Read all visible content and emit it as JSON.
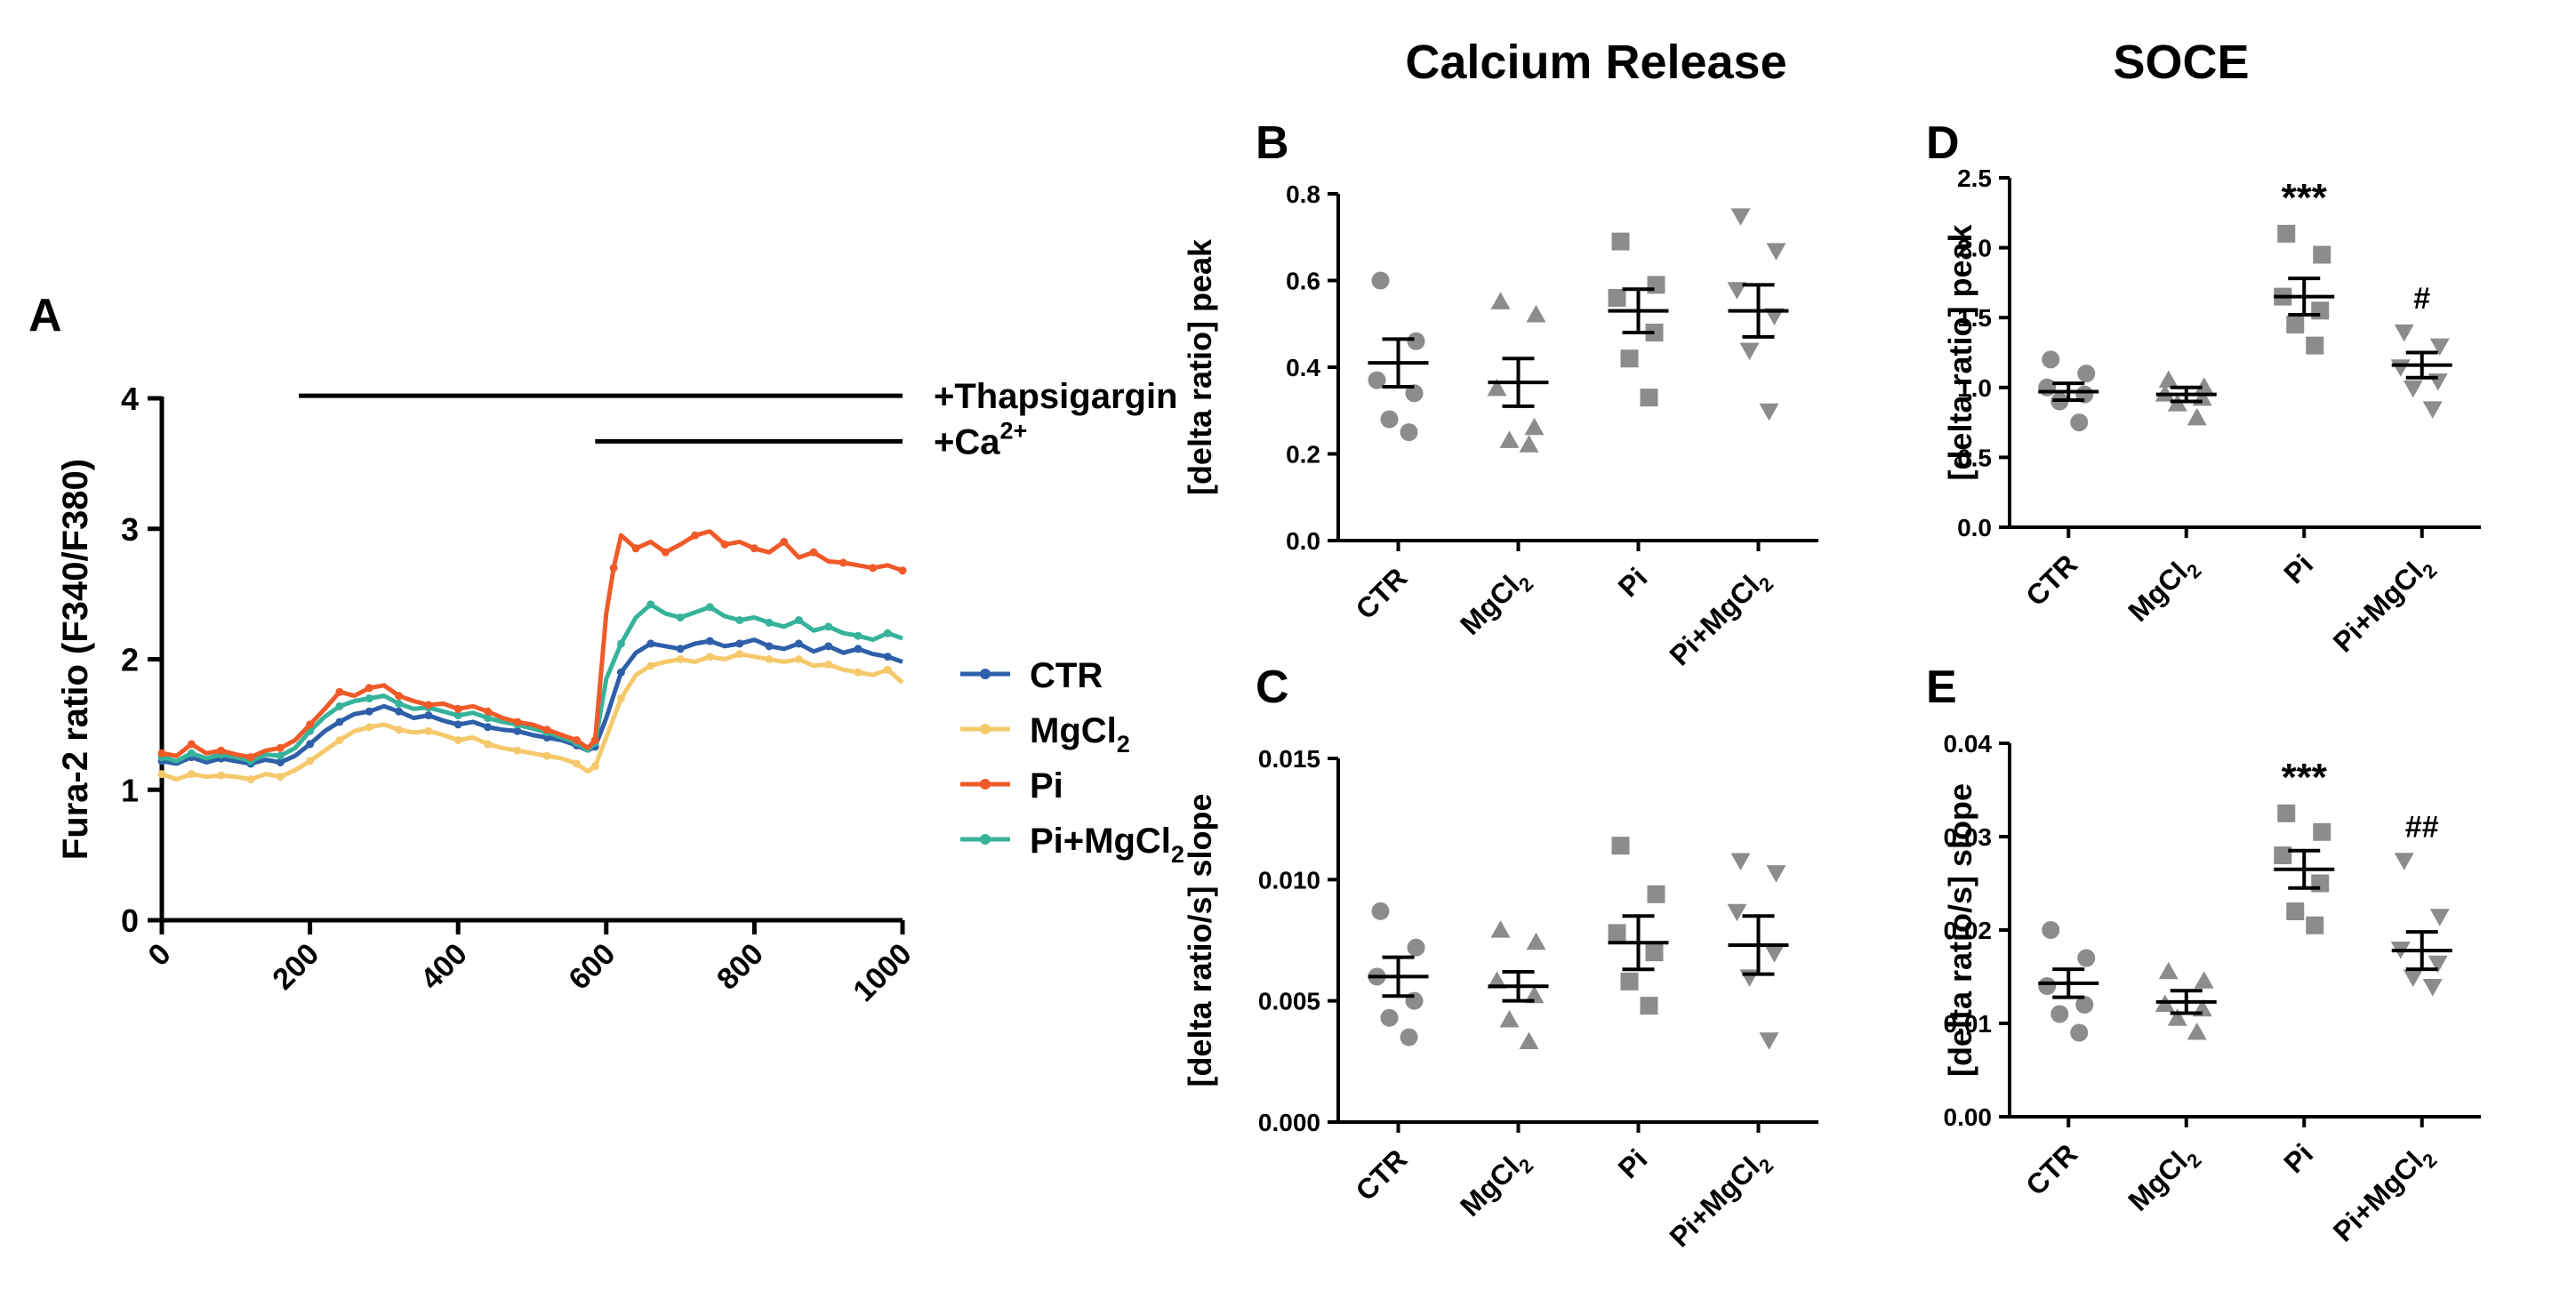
{
  "colors": {
    "CTR": "#2e5fa8",
    "MgCl2": "#f5c96b",
    "Pi": "#ef5a28",
    "Pi+MgCl2": "#36b39a",
    "points": "#8c8c8c",
    "axes": "#000000"
  },
  "section_titles": {
    "calcium_release": "Calcium Release",
    "soce": "SOCE"
  },
  "chart_data": [
    {
      "id": "A",
      "panel_label": "A",
      "type": "line",
      "ylabel": "Fura-2 ratio (F340/F380)",
      "xlabel": "",
      "xlim": [
        0,
        1000
      ],
      "ylim": [
        0,
        4
      ],
      "xticks": [
        "0",
        "200",
        "400",
        "600",
        "800",
        "1000"
      ],
      "yticks": [
        "0",
        "1",
        "2",
        "3",
        "4"
      ],
      "legend": "right",
      "annotations": [
        {
          "text": "+Thapsigargin",
          "x_start": 185,
          "x_end": 1000,
          "y": 4.02
        },
        {
          "text": "+Ca",
          "sup": "2+",
          "x_start": 585,
          "x_end": 1000,
          "y": 3.67
        }
      ],
      "series": [
        {
          "name": "CTR",
          "key": "CTR",
          "x": [
            0,
            20,
            40,
            60,
            80,
            100,
            120,
            140,
            160,
            180,
            200,
            220,
            240,
            260,
            280,
            300,
            320,
            340,
            360,
            380,
            400,
            420,
            440,
            460,
            480,
            500,
            520,
            540,
            560,
            575,
            585,
            600,
            620,
            640,
            660,
            680,
            700,
            720,
            740,
            760,
            780,
            800,
            820,
            840,
            860,
            880,
            900,
            920,
            940,
            960,
            980,
            1000
          ],
          "y": [
            1.22,
            1.2,
            1.25,
            1.21,
            1.24,
            1.22,
            1.2,
            1.23,
            1.21,
            1.26,
            1.35,
            1.45,
            1.52,
            1.58,
            1.6,
            1.64,
            1.6,
            1.55,
            1.57,
            1.53,
            1.5,
            1.52,
            1.48,
            1.46,
            1.45,
            1.42,
            1.4,
            1.38,
            1.34,
            1.3,
            1.33,
            1.55,
            1.9,
            2.05,
            2.12,
            2.1,
            2.08,
            2.12,
            2.14,
            2.1,
            2.12,
            2.15,
            2.1,
            2.08,
            2.12,
            2.06,
            2.1,
            2.05,
            2.08,
            2.04,
            2.02,
            1.98
          ]
        },
        {
          "name": "MgCl",
          "sub": "2",
          "key": "MgCl2",
          "x": [
            0,
            20,
            40,
            60,
            80,
            100,
            120,
            140,
            160,
            180,
            200,
            220,
            240,
            260,
            280,
            300,
            320,
            340,
            360,
            380,
            400,
            420,
            440,
            460,
            480,
            500,
            520,
            540,
            560,
            575,
            585,
            600,
            620,
            640,
            660,
            680,
            700,
            720,
            740,
            760,
            780,
            800,
            820,
            840,
            860,
            880,
            900,
            920,
            940,
            960,
            980,
            1000
          ],
          "y": [
            1.12,
            1.08,
            1.12,
            1.1,
            1.11,
            1.1,
            1.08,
            1.12,
            1.1,
            1.15,
            1.22,
            1.3,
            1.38,
            1.45,
            1.48,
            1.5,
            1.46,
            1.44,
            1.45,
            1.42,
            1.38,
            1.4,
            1.35,
            1.32,
            1.3,
            1.28,
            1.26,
            1.24,
            1.2,
            1.14,
            1.18,
            1.4,
            1.7,
            1.88,
            1.95,
            1.98,
            2.0,
            1.98,
            2.02,
            2.0,
            2.04,
            2.02,
            2.0,
            1.98,
            2.0,
            1.95,
            1.96,
            1.92,
            1.9,
            1.88,
            1.92,
            1.82
          ]
        },
        {
          "name": "Pi",
          "key": "Pi",
          "x": [
            0,
            20,
            40,
            60,
            80,
            100,
            120,
            140,
            160,
            180,
            200,
            220,
            240,
            260,
            280,
            300,
            320,
            340,
            360,
            380,
            400,
            420,
            440,
            460,
            480,
            500,
            520,
            540,
            560,
            575,
            585,
            600,
            610,
            620,
            640,
            660,
            680,
            700,
            720,
            740,
            760,
            780,
            800,
            820,
            840,
            860,
            880,
            900,
            920,
            940,
            960,
            980,
            1000
          ],
          "y": [
            1.28,
            1.26,
            1.35,
            1.28,
            1.3,
            1.27,
            1.25,
            1.3,
            1.32,
            1.38,
            1.5,
            1.62,
            1.75,
            1.72,
            1.78,
            1.8,
            1.72,
            1.68,
            1.65,
            1.66,
            1.62,
            1.64,
            1.6,
            1.55,
            1.52,
            1.5,
            1.46,
            1.42,
            1.38,
            1.32,
            1.38,
            2.35,
            2.7,
            2.95,
            2.85,
            2.9,
            2.82,
            2.88,
            2.95,
            2.98,
            2.88,
            2.9,
            2.85,
            2.82,
            2.9,
            2.78,
            2.82,
            2.75,
            2.74,
            2.72,
            2.7,
            2.72,
            2.68
          ]
        },
        {
          "name": "Pi+MgCl",
          "sub": "2",
          "key": "Pi+MgCl2",
          "x": [
            0,
            20,
            40,
            60,
            80,
            100,
            120,
            140,
            160,
            180,
            200,
            220,
            240,
            260,
            280,
            300,
            320,
            340,
            360,
            380,
            400,
            420,
            440,
            460,
            480,
            500,
            520,
            540,
            560,
            575,
            585,
            600,
            620,
            640,
            660,
            680,
            700,
            720,
            740,
            760,
            780,
            800,
            820,
            840,
            860,
            880,
            900,
            920,
            940,
            960,
            980,
            1000
          ],
          "y": [
            1.25,
            1.22,
            1.28,
            1.24,
            1.27,
            1.25,
            1.22,
            1.27,
            1.26,
            1.32,
            1.45,
            1.56,
            1.64,
            1.68,
            1.7,
            1.72,
            1.66,
            1.62,
            1.63,
            1.6,
            1.57,
            1.59,
            1.55,
            1.52,
            1.5,
            1.47,
            1.44,
            1.4,
            1.36,
            1.3,
            1.36,
            1.85,
            2.12,
            2.32,
            2.42,
            2.35,
            2.32,
            2.36,
            2.4,
            2.33,
            2.3,
            2.32,
            2.28,
            2.25,
            2.3,
            2.22,
            2.25,
            2.2,
            2.18,
            2.15,
            2.2,
            2.16
          ]
        }
      ]
    },
    {
      "id": "B",
      "panel_label": "B",
      "type": "scatter",
      "ylabel": "[delta ratio] peak",
      "ylim": [
        0,
        0.8
      ],
      "yticks": [
        "0.0",
        "0.2",
        "0.4",
        "0.6",
        "0.8"
      ],
      "categories": [
        "CTR",
        "MgCl",
        "Pi",
        "Pi+MgCl"
      ],
      "category_subs": [
        "",
        "2",
        "",
        "2"
      ],
      "markers": [
        "circle",
        "triangle-up",
        "square",
        "triangle-down"
      ],
      "points": [
        [
          0.6,
          0.46,
          0.37,
          0.34,
          0.28,
          0.25
        ],
        [
          0.55,
          0.52,
          0.35,
          0.26,
          0.23,
          0.22
        ],
        [
          0.69,
          0.59,
          0.56,
          0.48,
          0.42,
          0.33
        ],
        [
          0.75,
          0.67,
          0.58,
          0.52,
          0.44,
          0.3
        ]
      ],
      "means": [
        0.41,
        0.365,
        0.53,
        0.53
      ],
      "sems": [
        0.055,
        0.055,
        0.05,
        0.06
      ],
      "annotations": [
        "",
        "",
        "",
        ""
      ]
    },
    {
      "id": "C",
      "panel_label": "C",
      "type": "scatter",
      "ylabel": "[delta ratio/s] slope",
      "ylim": [
        0,
        0.015
      ],
      "yticks": [
        "0.000",
        "0.005",
        "0.010",
        "0.015"
      ],
      "categories": [
        "CTR",
        "MgCl",
        "Pi",
        "Pi+MgCl"
      ],
      "category_subs": [
        "",
        "2",
        "",
        "2"
      ],
      "markers": [
        "circle",
        "triangle-up",
        "square",
        "triangle-down"
      ],
      "points": [
        [
          0.0087,
          0.0072,
          0.006,
          0.005,
          0.0043,
          0.0035
        ],
        [
          0.0079,
          0.0074,
          0.0058,
          0.0052,
          0.0042,
          0.0033
        ],
        [
          0.0114,
          0.0094,
          0.0078,
          0.007,
          0.0058,
          0.0048
        ],
        [
          0.0108,
          0.0103,
          0.0087,
          0.007,
          0.006,
          0.0034
        ]
      ],
      "means": [
        0.006,
        0.0056,
        0.0074,
        0.0073
      ],
      "sems": [
        0.0008,
        0.0006,
        0.0011,
        0.0012
      ],
      "annotations": [
        "",
        "",
        "",
        ""
      ]
    },
    {
      "id": "D",
      "panel_label": "D",
      "type": "scatter",
      "ylabel": "[delta ratio] peak",
      "ylim": [
        0,
        2.5
      ],
      "yticks": [
        "0.0",
        "0.5",
        "1.0",
        "1.5",
        "2.0",
        "2.5"
      ],
      "categories": [
        "CTR",
        "MgCl",
        "Pi",
        "Pi+MgCl"
      ],
      "category_subs": [
        "",
        "2",
        "",
        "2"
      ],
      "markers": [
        "circle",
        "triangle-up",
        "square",
        "triangle-down"
      ],
      "points": [
        [
          1.2,
          1.1,
          1.0,
          0.95,
          0.9,
          0.75
        ],
        [
          1.05,
          1.0,
          0.95,
          0.92,
          0.88,
          0.78
        ],
        [
          2.1,
          1.95,
          1.65,
          1.55,
          1.45,
          1.3
        ],
        [
          1.4,
          1.3,
          1.15,
          1.05,
          1.0,
          0.85
        ]
      ],
      "means": [
        0.97,
        0.95,
        1.65,
        1.16
      ],
      "sems": [
        0.06,
        0.05,
        0.13,
        0.09
      ],
      "annotations": [
        "",
        "",
        "***",
        "#"
      ]
    },
    {
      "id": "E",
      "panel_label": "E",
      "type": "scatter",
      "ylabel": "[delta ratio/s] slope",
      "ylim": [
        0,
        0.04
      ],
      "yticks": [
        "0.00",
        "0.01",
        "0.02",
        "0.03",
        "0.04"
      ],
      "categories": [
        "CTR",
        "MgCl",
        "Pi",
        "Pi+MgCl"
      ],
      "category_subs": [
        "",
        "2",
        "",
        "2"
      ],
      "markers": [
        "circle",
        "triangle-up",
        "square",
        "triangle-down"
      ],
      "points": [
        [
          0.02,
          0.017,
          0.014,
          0.012,
          0.011,
          0.009
        ],
        [
          0.0155,
          0.0145,
          0.012,
          0.0115,
          0.0105,
          0.009
        ],
        [
          0.0325,
          0.0305,
          0.028,
          0.025,
          0.022,
          0.0205
        ],
        [
          0.0275,
          0.0215,
          0.018,
          0.0165,
          0.015,
          0.014
        ]
      ],
      "means": [
        0.0143,
        0.0123,
        0.0265,
        0.0178
      ],
      "sems": [
        0.0015,
        0.0012,
        0.002,
        0.002
      ],
      "annotations": [
        "",
        "",
        "***",
        "##"
      ]
    }
  ]
}
